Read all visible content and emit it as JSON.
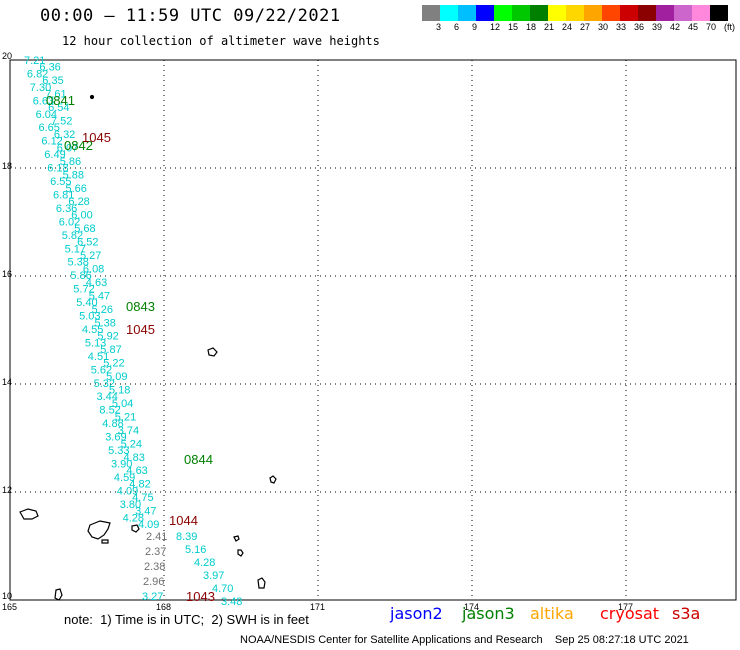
{
  "header": {
    "title": "00:00 – 11:59 UTC 09/22/2021",
    "subtitle": "12 hour collection of altimeter wave heights"
  },
  "legend": {
    "colors": [
      "#808080",
      "#00ffff",
      "#00bfff",
      "#0000ff",
      "#00ff00",
      "#00c800",
      "#008000",
      "#ffff00",
      "#ffd700",
      "#ffa500",
      "#ff4500",
      "#cc0000",
      "#8b0000",
      "#a020a0",
      "#cc66cc",
      "#ff88dd",
      "#000000"
    ],
    "labels": [
      "3",
      "6",
      "9",
      "12",
      "15",
      "18",
      "21",
      "24",
      "27",
      "30",
      "33",
      "36",
      "39",
      "42",
      "45",
      "70",
      "(ft)"
    ]
  },
  "map_axes": {
    "lat_ticks": [
      "20",
      "18",
      "16",
      "14",
      "12",
      "10"
    ],
    "lon_ticks": [
      "165",
      "168",
      "171",
      "174",
      "177"
    ]
  },
  "pass_labels": [
    {
      "text": "0841",
      "color": "#008000"
    },
    {
      "text": "0842",
      "color": "#008000"
    },
    {
      "text": "0843",
      "color": "#008000"
    },
    {
      "text": "0844",
      "color": "#008000"
    },
    {
      "text": "1045",
      "color": "#8b0000"
    },
    {
      "text": "1045",
      "color": "#8b0000"
    },
    {
      "text": "1044",
      "color": "#8b0000"
    },
    {
      "text": "1043",
      "color": "#8b0000"
    }
  ],
  "track_a_values": [
    "7.21",
    "6.36",
    "6.82",
    "6.35",
    "7.30",
    "7.61",
    "6.63",
    "6.54",
    "6.04",
    "7.52",
    "6.65",
    "6.32",
    "6.12",
    "6.07",
    "6.49",
    "5.86",
    "6.18",
    "5.88",
    "6.55",
    "5.66",
    "6.81",
    "6.28",
    "6.36",
    "6.00",
    "6.02",
    "5.68",
    "5.82",
    "6.52",
    "5.17",
    "5.27",
    "5.38",
    "6.08",
    "5.86",
    "4.63",
    "5.72",
    "5.47",
    "5.40",
    "5.26",
    "5.03",
    "5.38",
    "4.55",
    "5.92",
    "5.13",
    "5.87",
    "4.51",
    "5.22",
    "5.62",
    "5.09",
    "5.32",
    "5.18",
    "3.44",
    "5.04",
    "8.52",
    "5.21",
    "4.88",
    "3.74",
    "3.69",
    "5.24",
    "5.33",
    "4.83",
    "3.90",
    "4.63",
    "4.59",
    "4.82",
    "4.09",
    "4.75",
    "3.80",
    "3.47",
    "4.28",
    "4.09"
  ],
  "track_a_gray": [
    "2.41",
    "2.37",
    "2.38",
    "2.96",
    "3.27"
  ],
  "track_b_values": [
    "8.39",
    "5.16",
    "4.28",
    "3.97",
    "4.70",
    "3.48"
  ],
  "footer": {
    "note": "note:  1) Time is in UTC;  2) SWH is in feet",
    "credit": "NOAA/NESDIS Center for Satellite Applications and Research    Sep 25 08:27:18 UTC 2021"
  },
  "missions": [
    {
      "name": "jason2",
      "color": "#0000ff"
    },
    {
      "name": "jason3",
      "color": "#008000"
    },
    {
      "name": "altika",
      "color": "#ffa500"
    },
    {
      "name": "cryosat",
      "color": "#ff0000"
    },
    {
      "name": "s3a",
      "color": "#cc0000"
    }
  ]
}
